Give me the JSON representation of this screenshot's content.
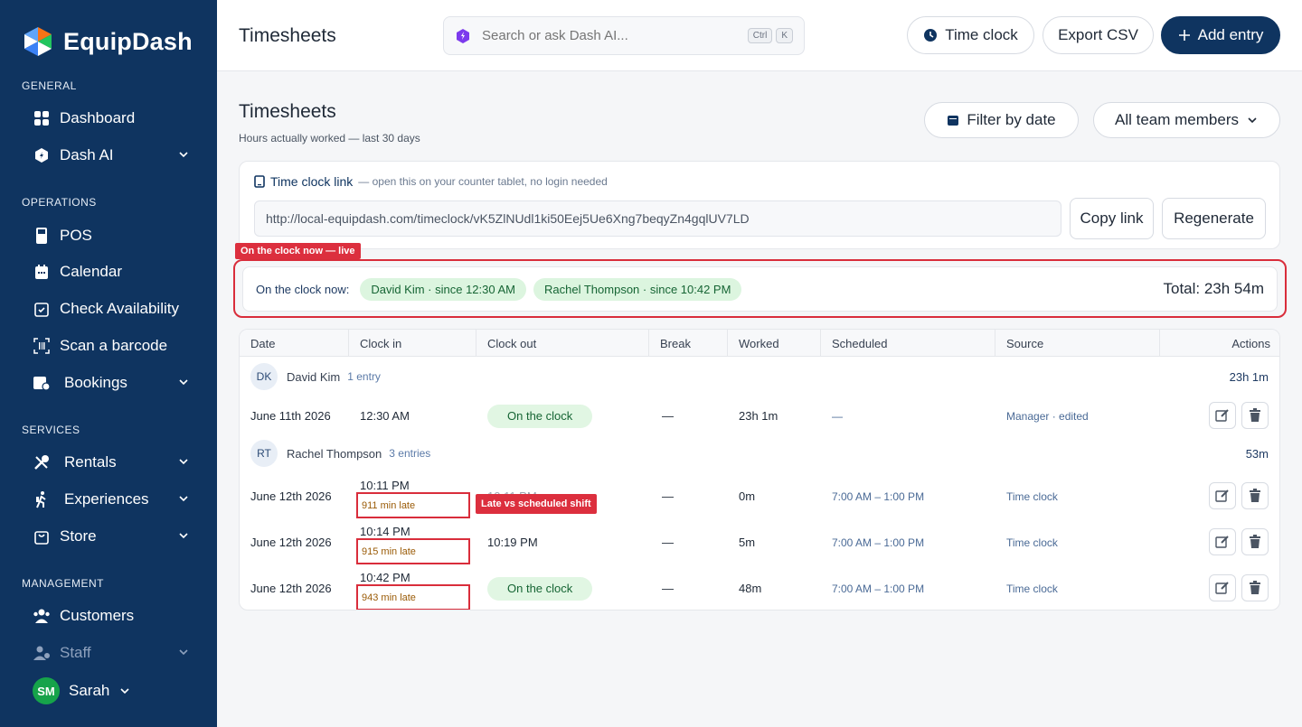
{
  "app": {
    "name": "EquipDash"
  },
  "sidebar": {
    "sections": {
      "general": "GENERAL",
      "operations": "OPERATIONS",
      "services": "SERVICES",
      "management": "MANAGEMENT"
    },
    "items": {
      "dashboard": "Dashboard",
      "dash_ai": "Dash AI",
      "pos": "POS",
      "calendar": "Calendar",
      "check_availability": "Check Availability",
      "scan_barcode": "Scan a barcode",
      "bookings": "Bookings",
      "rentals": "Rentals",
      "experiences": "Experiences",
      "store": "Store",
      "customers": "Customers",
      "staff": "Staff"
    },
    "user": {
      "initials": "SM",
      "name": "Sarah"
    }
  },
  "header": {
    "title": "Timesheets",
    "search_placeholder": "Search or ask Dash AI...",
    "kbd": [
      "Ctrl",
      "K"
    ],
    "time_clock": "Time clock",
    "export_csv": "Export CSV",
    "add_entry": "Add entry"
  },
  "main": {
    "title": "Timesheets",
    "subtitle": "Hours actually worked — last 30 days",
    "filter_by_date": "Filter by date",
    "team_filter": "All team members",
    "time_clock_link": {
      "label": "Time clock link",
      "hint": "— open this on your counter tablet, no login needed",
      "url": "http://local-equipdash.com/timeclock/vK5ZlNUdl1ki50Eej5Ue6Xng7beqyZn4gqlUV7LD",
      "copy": "Copy link",
      "regenerate": "Regenerate"
    },
    "live": {
      "tag": "On the clock now — live",
      "label": "On the clock now:",
      "chips": [
        "David Kim · since 12:30 AM",
        "Rachel Thompson · since 10:42 PM"
      ],
      "total": "Total: 23h 54m"
    },
    "table": {
      "columns": [
        "Date",
        "Clock in",
        "Clock out",
        "Break",
        "Worked",
        "Scheduled",
        "Source",
        "Actions"
      ],
      "groups": [
        {
          "initials": "DK",
          "name": "David Kim",
          "count": "1 entry",
          "total": "23h 1m",
          "rows": [
            {
              "date": "June 11th 2026",
              "clock_in": "12:30 AM",
              "late": "",
              "clock_out": "On the clock",
              "break": "—",
              "worked": "23h 1m",
              "scheduled": "—",
              "source": "Manager · edited"
            }
          ]
        },
        {
          "initials": "RT",
          "name": "Rachel Thompson",
          "count": "3 entries",
          "total": "53m",
          "rows": [
            {
              "date": "June 12th 2026",
              "clock_in": "10:11 PM",
              "late": "911 min late",
              "clock_out": "10:11 PM",
              "break": "—",
              "worked": "0m",
              "scheduled": "7:00 AM – 1:00 PM",
              "source": "Time clock"
            },
            {
              "date": "June 12th 2026",
              "clock_in": "10:14 PM",
              "late": "915 min late",
              "clock_out": "10:19 PM",
              "break": "—",
              "worked": "5m",
              "scheduled": "7:00 AM – 1:00 PM",
              "source": "Time clock"
            },
            {
              "date": "June 12th 2026",
              "clock_in": "10:42 PM",
              "late": "943 min late",
              "clock_out": "On the clock",
              "break": "—",
              "worked": "48m",
              "scheduled": "7:00 AM – 1:00 PM",
              "source": "Time clock"
            }
          ]
        }
      ],
      "late_callout": "Late vs scheduled shift"
    }
  },
  "colors": {
    "sidebar": "#0f3460",
    "accent_red": "#dc2f3e",
    "green_chip": "#dcf5df",
    "late_text": "#9a5b07"
  }
}
